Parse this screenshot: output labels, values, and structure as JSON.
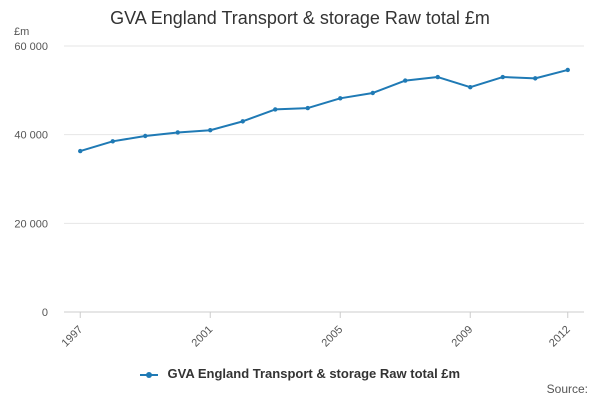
{
  "chart_data": {
    "type": "line",
    "title": "GVA England Transport & storage Raw total £m",
    "ylabel": "£m",
    "ylim": [
      0,
      60000
    ],
    "y_ticks": [
      {
        "value": 0,
        "label": "0"
      },
      {
        "value": 20000,
        "label": "20 000"
      },
      {
        "value": 40000,
        "label": "40 000"
      },
      {
        "value": 60000,
        "label": "60 000"
      }
    ],
    "x_ticks": [
      1997,
      2001,
      2005,
      2009,
      2012
    ],
    "x": [
      1997,
      1998,
      1999,
      2000,
      2001,
      2002,
      2003,
      2004,
      2005,
      2006,
      2007,
      2008,
      2009,
      2010,
      2011,
      2012
    ],
    "grid": true,
    "legend_position": "bottom",
    "series": [
      {
        "name": "GVA England Transport & storage Raw total £m",
        "color": "#1f7ab5",
        "values": [
          36300,
          38500,
          39700,
          40500,
          41000,
          43000,
          45700,
          46000,
          48200,
          49400,
          52200,
          53000,
          50700,
          53000,
          52700,
          54600
        ]
      }
    ]
  },
  "source_label": "Source:"
}
